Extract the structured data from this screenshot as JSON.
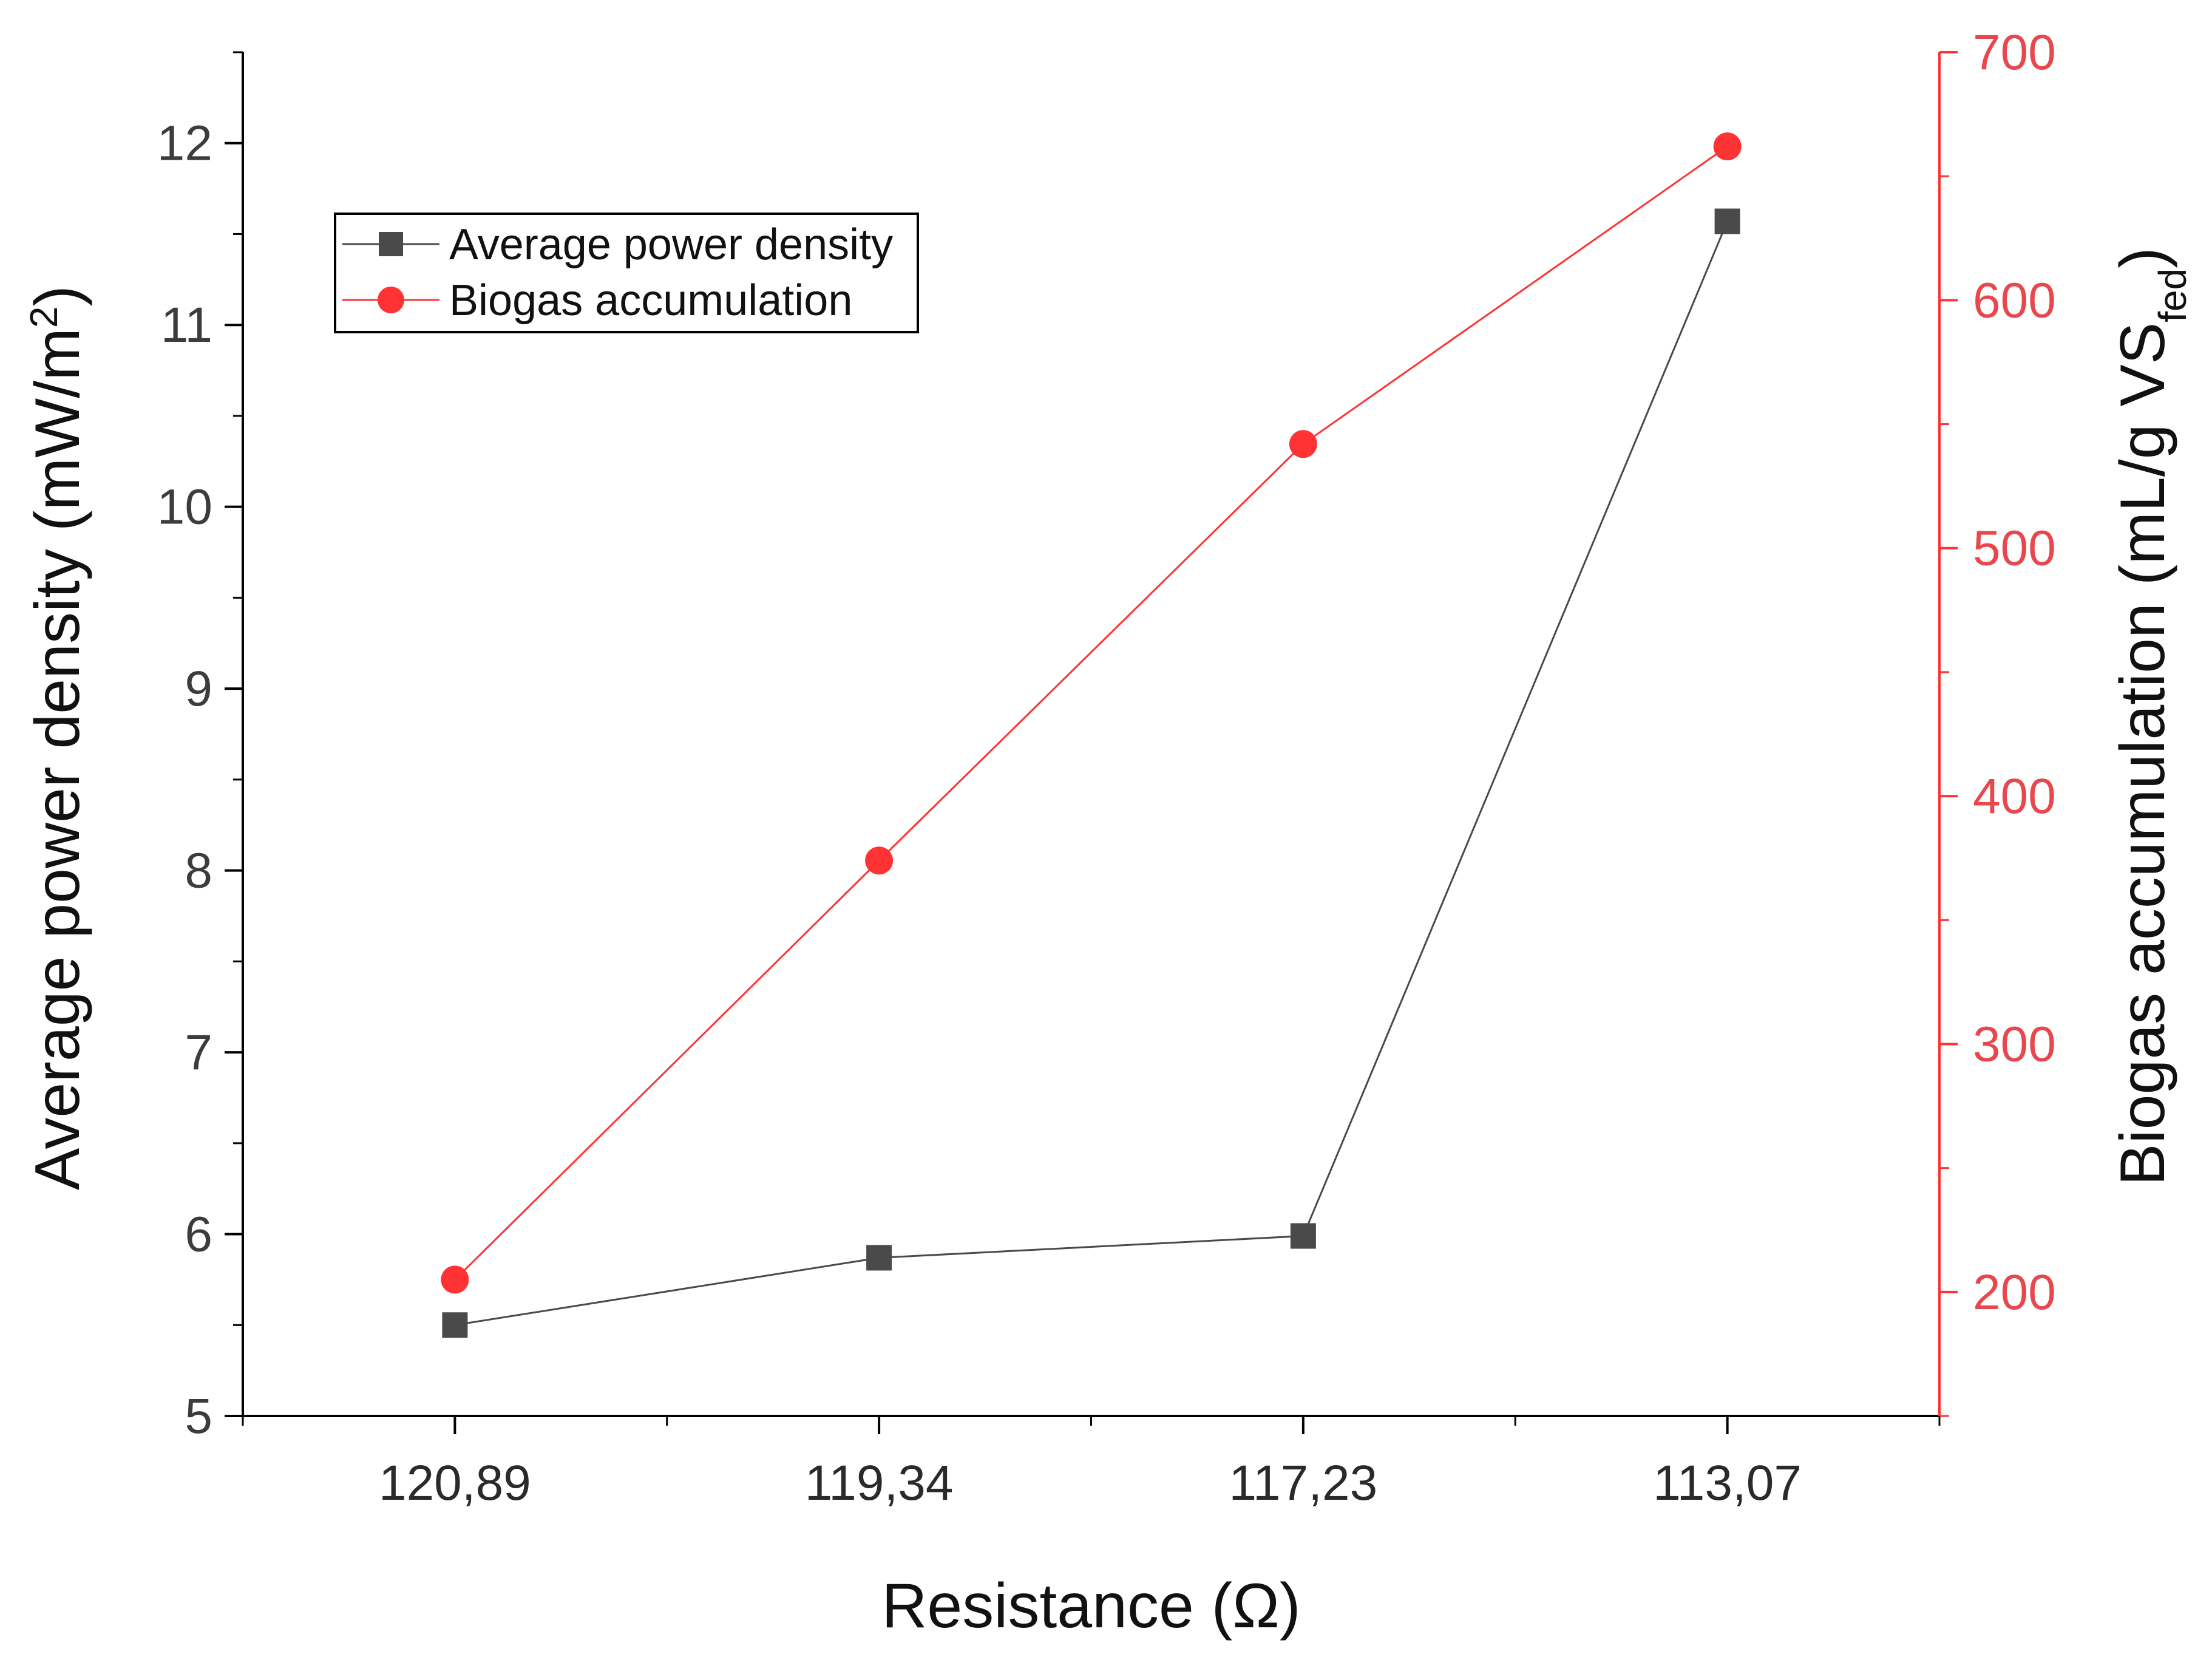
{
  "chart_data": {
    "type": "line",
    "categories": [
      "120,89",
      "119,34",
      "117,23",
      "113,07"
    ],
    "xlabel": "Resistance (Ω)",
    "ylabel_left": {
      "main": "Average power density (mW/m",
      "sup": "2",
      "close": ")"
    },
    "ylabel_right": {
      "main": "Biogas accumulation (mL/g VS",
      "sub": "fed",
      "close": ")"
    },
    "ylim_left": [
      5,
      12.5
    ],
    "yticks_left": [
      5,
      6,
      7,
      8,
      9,
      10,
      11,
      12
    ],
    "ylim_right": [
      150,
      700
    ],
    "yticks_right": [
      200,
      300,
      400,
      500,
      600,
      700
    ],
    "grid": false,
    "legend_placement": "top-left",
    "series": [
      {
        "name": "Average power density",
        "axis": "left",
        "marker": "square",
        "color": "#4a4a4a",
        "values": [
          5.5,
          5.87,
          5.99,
          11.57
        ]
      },
      {
        "name": "Biogas accumulation",
        "axis": "right",
        "marker": "circle",
        "color": "#ff3333",
        "values": [
          205,
          374,
          542,
          662
        ]
      }
    ],
    "colors": {
      "left_axis": "#000000",
      "right_axis": "#ff3333"
    }
  }
}
